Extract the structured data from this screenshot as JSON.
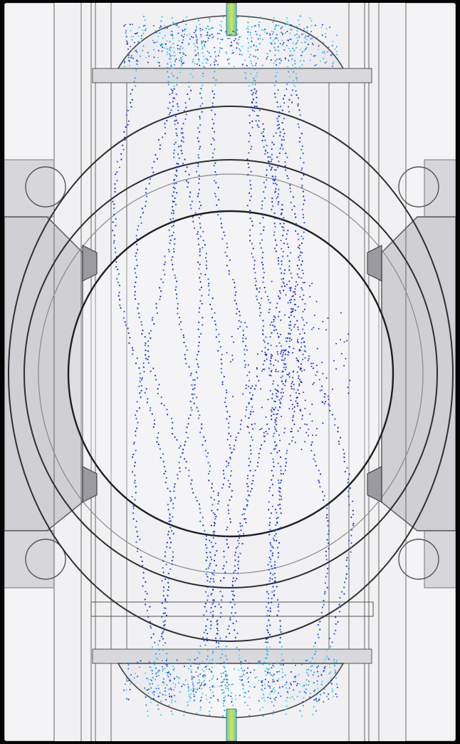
{
  "view": {
    "background_color": "#f1f1f3",
    "frame_color": "#050505",
    "geometry_line_color": "#3a3a3a",
    "housing_fill_color": "#d4d4d8",
    "particle_colors": [
      "#1d2bd8",
      "#2a5cf0",
      "#36a0f0",
      "#3fd6e8"
    ],
    "highlight_color": "#e9e02f"
  },
  "particles": {
    "stream_count": 14,
    "colormap": "velocity-blue-to-cyan"
  }
}
